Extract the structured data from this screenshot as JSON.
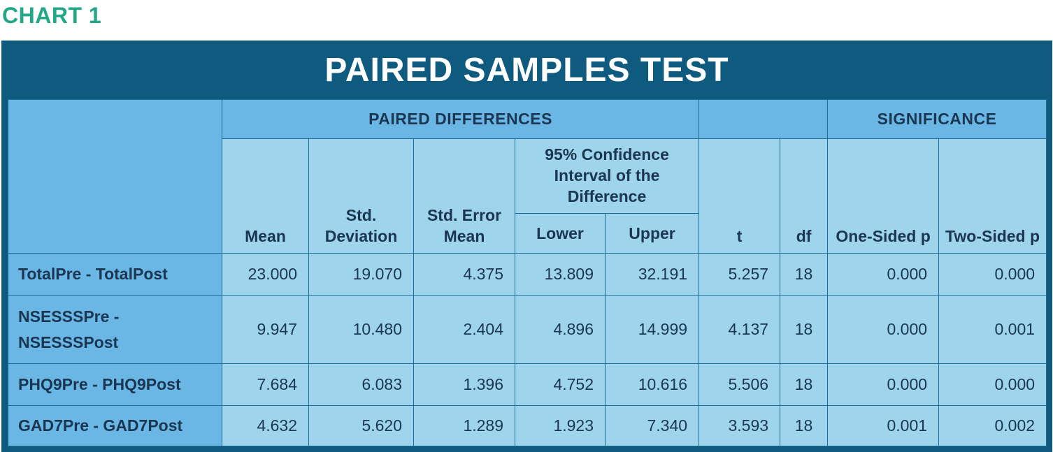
{
  "chart_label": "CHART 1",
  "title": "PAIRED SAMPLES TEST",
  "groups": {
    "paired_differences": "PAIRED DIFFERENCES",
    "significance": "SIGNIFICANCE"
  },
  "columns": {
    "mean": "Mean",
    "std_deviation": "Std. Deviation",
    "std_error_mean": "Std. Error Mean",
    "ci": "95% Confidence Interval of the Difference",
    "lower": "Lower",
    "upper": "Upper",
    "t": "t",
    "df": "df",
    "one_sided": "One-Sided p",
    "two_sided": "Two-Sided p"
  },
  "rows": [
    {
      "label": "TotalPre - TotalPost",
      "mean": "23.000",
      "sd": "19.070",
      "sem": "4.375",
      "lower": "13.809",
      "upper": "32.191",
      "t": "5.257",
      "df": "18",
      "one_sided": "0.000",
      "two_sided": "0.000"
    },
    {
      "label": "NSESSSPre - NSESSSPost",
      "mean": "9.947",
      "sd": "10.480",
      "sem": "2.404",
      "lower": "4.896",
      "upper": "14.999",
      "t": "4.137",
      "df": "18",
      "one_sided": "0.000",
      "two_sided": "0.001"
    },
    {
      "label": "PHQ9Pre - PHQ9Post",
      "mean": "7.684",
      "sd": "6.083",
      "sem": "1.396",
      "lower": "4.752",
      "upper": "10.616",
      "t": "5.506",
      "df": "18",
      "one_sided": "0.000",
      "two_sided": "0.000"
    },
    {
      "label": "GAD7Pre - GAD7Post",
      "mean": "4.632",
      "sd": "5.620",
      "sem": "1.289",
      "lower": "1.923",
      "upper": "7.340",
      "t": "3.593",
      "df": "18",
      "one_sided": "0.001",
      "two_sided": "0.002"
    }
  ],
  "colors": {
    "accent_green": "#22a887",
    "frame_blue": "#0f5b80",
    "header_blue": "#6ab7e6",
    "cell_blue": "#9fd5ec",
    "text_dark": "#1a3650"
  }
}
